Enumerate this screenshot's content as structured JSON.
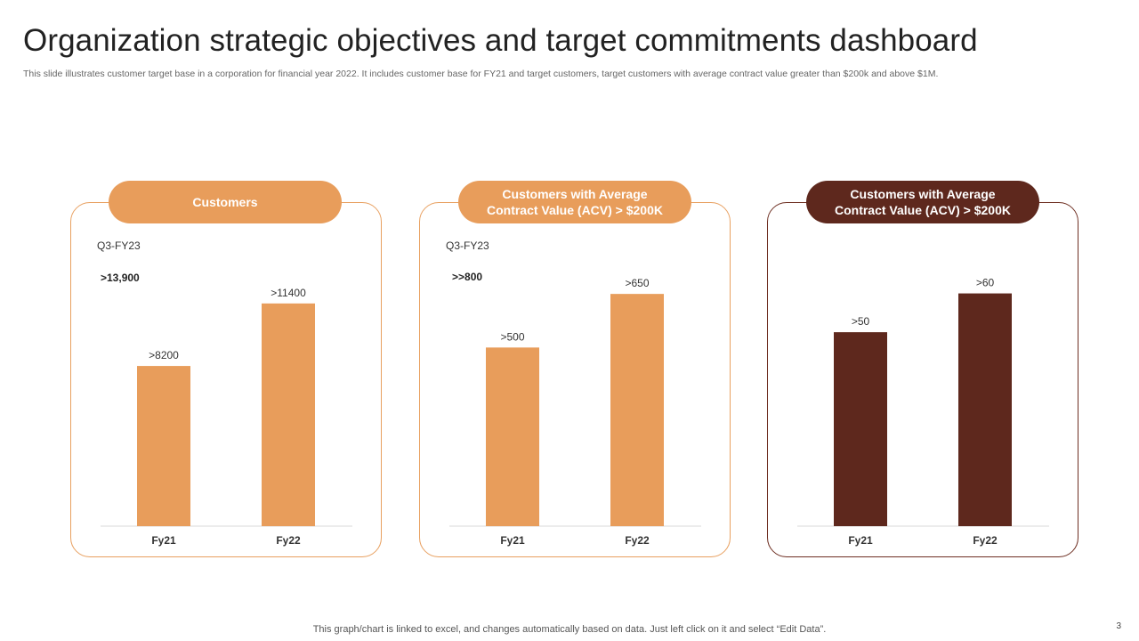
{
  "slide": {
    "title": "Organization strategic objectives and target commitments dashboard",
    "subtitle": "This slide illustrates customer target base in a corporation for financial year 2022. It includes customer base for FY21 and target customers, target customers with average contract value greater than $200k and above $1M.",
    "footer": "This graph/chart is linked to excel,  and changes automatically based on data. Just left click on it and select “Edit Data”.",
    "page_number": "3"
  },
  "colors": {
    "accent_orange": "#e89d5b",
    "accent_brown": "#5e281d",
    "baseline": "#d9d9d9"
  },
  "cards": [
    {
      "header_lines": [
        "Customers"
      ],
      "q_label": "Q3-FY23",
      "q_value": ">13,900"
    },
    {
      "header_lines": [
        "Customers with Average",
        "Contract Value (ACV) > $200K"
      ],
      "q_label": "Q3-FY23",
      "q_value": ">>800"
    },
    {
      "header_lines": [
        "Customers with Average",
        "Contract Value (ACV) > $200K"
      ]
    }
  ],
  "chart_data": [
    {
      "type": "bar",
      "title": "Customers",
      "categories": [
        "Fy21",
        "Fy22"
      ],
      "values": [
        8200,
        11400
      ],
      "data_labels": [
        ">8200",
        ">11400"
      ],
      "ylim": [
        0,
        13900
      ],
      "color": "#e89d5b",
      "xlabel": "",
      "ylabel": ""
    },
    {
      "type": "bar",
      "title": "Customers with Average Contract Value (ACV) > $200K",
      "categories": [
        "Fy21",
        "Fy22"
      ],
      "values": [
        500,
        650
      ],
      "data_labels": [
        ">500",
        ">650"
      ],
      "ylim": [
        0,
        760
      ],
      "color": "#e89d5b",
      "xlabel": "",
      "ylabel": ""
    },
    {
      "type": "bar",
      "title": "Customers with Average Contract Value (ACV) > $200K",
      "categories": [
        "Fy21",
        "Fy22"
      ],
      "values": [
        50,
        60
      ],
      "data_labels": [
        ">50",
        ">60"
      ],
      "ylim": [
        0,
        70
      ],
      "color": "#5e281d",
      "xlabel": "",
      "ylabel": ""
    }
  ]
}
